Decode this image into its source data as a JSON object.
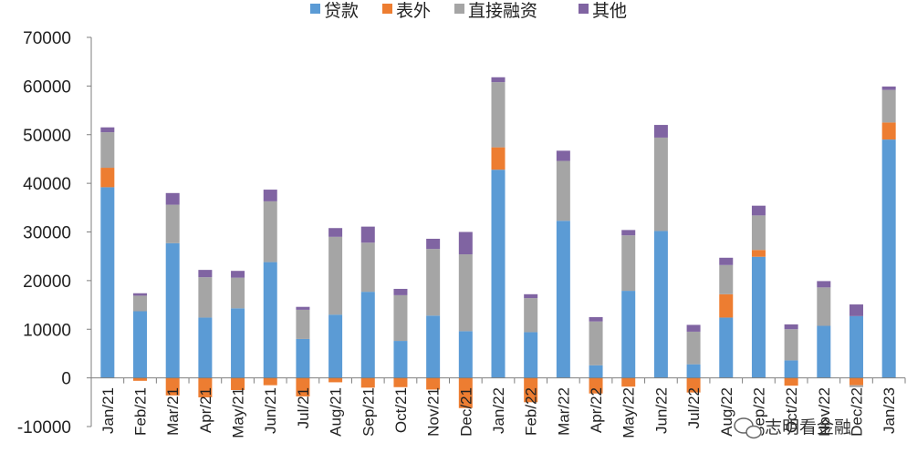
{
  "watermark": {
    "text": "志明看金融"
  },
  "chart_data": {
    "type": "bar",
    "stacked": true,
    "title": "",
    "xlabel": "",
    "ylabel": "",
    "ylim": [
      -10000,
      70000
    ],
    "yticks": [
      70000,
      60000,
      50000,
      40000,
      30000,
      20000,
      10000,
      0,
      -10000
    ],
    "grid": false,
    "legend_position": "top",
    "categories": [
      "Jan/21",
      "Feb/21",
      "Mar/21",
      "Apr/21",
      "May/21",
      "Jun/21",
      "Jul/21",
      "Aug/21",
      "Sep/21",
      "Oct/21",
      "Nov/21",
      "Dec/21",
      "Jan/22",
      "Feb/22",
      "Mar/22",
      "Apr/22",
      "May/22",
      "Jun/22",
      "Jul/22",
      "Aug/22",
      "Sep/22",
      "Oct/22",
      "Nov/22",
      "Dec/22",
      "Jan/23"
    ],
    "series": [
      {
        "name": "贷款",
        "color": "#5B9BD5",
        "values": [
          39200,
          13700,
          27700,
          12400,
          14300,
          23800,
          8000,
          13000,
          17700,
          7600,
          12800,
          9600,
          42800,
          9400,
          32300,
          2600,
          17900,
          30200,
          2800,
          12400,
          24900,
          3600,
          10700,
          12700,
          49000
        ]
      },
      {
        "name": "表外",
        "color": "#ED7D31",
        "values": [
          4000,
          -600,
          -3600,
          -4000,
          -2500,
          -1500,
          -3800,
          -900,
          -2000,
          -1900,
          -2400,
          -6200,
          4600,
          -5000,
          0,
          -3200,
          -1800,
          0,
          -3000,
          4800,
          1400,
          -1600,
          0,
          -1500,
          3500
        ]
      },
      {
        "name": "直接融资",
        "color": "#A5A5A5",
        "values": [
          7300,
          3200,
          7900,
          8300,
          6300,
          12500,
          6000,
          16000,
          10100,
          9400,
          13700,
          15800,
          13400,
          7000,
          12300,
          9000,
          11400,
          19200,
          6700,
          6000,
          7100,
          6400,
          7900,
          -400,
          6700
        ]
      },
      {
        "name": "其他",
        "color": "#8064A2",
        "values": [
          1000,
          500,
          2400,
          1500,
          1400,
          2400,
          600,
          1800,
          3300,
          1300,
          2100,
          4600,
          1000,
          800,
          2100,
          900,
          1100,
          2600,
          1400,
          1500,
          2000,
          1000,
          1300,
          2400,
          700
        ]
      }
    ]
  }
}
